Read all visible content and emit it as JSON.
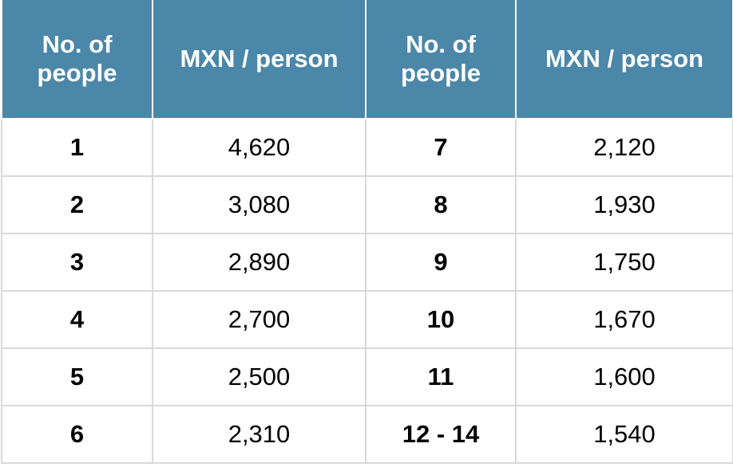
{
  "table": {
    "header": [
      "No. of people",
      "MXN / person",
      "No. of people",
      "MXN / person"
    ],
    "rows": [
      [
        "1",
        "4,620",
        "7",
        "2,120"
      ],
      [
        "2",
        "3,080",
        "8",
        "1,930"
      ],
      [
        "3",
        "2,890",
        "9",
        "1,750"
      ],
      [
        "4",
        "2,700",
        "10",
        "1,670"
      ],
      [
        "5",
        "2,500",
        "11",
        "1,600"
      ],
      [
        "6",
        "2,310",
        "12 - 14",
        "1,540"
      ]
    ]
  }
}
